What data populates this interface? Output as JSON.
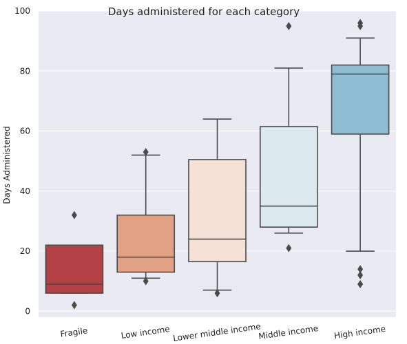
{
  "chart_data": {
    "type": "box",
    "title": "Days administered for each category",
    "xlabel": "",
    "ylabel": "Days Administered",
    "ylim": [
      -2,
      100
    ],
    "yticks": [
      0,
      20,
      40,
      60,
      80,
      100
    ],
    "grid": true,
    "categories": [
      "Fragile",
      "Low income",
      "Lower middle income",
      "Middle income",
      "High income"
    ],
    "colors": {
      "plot_bg": "#eaeaf2",
      "grid": "#ffffff",
      "stroke": "#4a4a4a",
      "boxes": [
        "#b24045",
        "#e3a184",
        "#f6e1d6",
        "#dce9ee",
        "#8ebdd3"
      ]
    },
    "boxes": [
      {
        "category": "Fragile",
        "q1": 6,
        "median": 9,
        "q3": 22,
        "whisker_low": 6,
        "whisker_high": 22,
        "outliers": [
          32,
          2
        ]
      },
      {
        "category": "Low income",
        "q1": 13,
        "median": 18,
        "q3": 32,
        "whisker_low": 11,
        "whisker_high": 52,
        "outliers": [
          53,
          10
        ]
      },
      {
        "category": "Lower middle income",
        "q1": 16.5,
        "median": 24,
        "q3": 50.5,
        "whisker_low": 7,
        "whisker_high": 64,
        "outliers": [
          6
        ]
      },
      {
        "category": "Middle income",
        "q1": 28,
        "median": 35,
        "q3": 61.5,
        "whisker_low": 26,
        "whisker_high": 81,
        "outliers": [
          95,
          21
        ]
      },
      {
        "category": "High income",
        "q1": 59,
        "median": 79,
        "q3": 82,
        "whisker_low": 20,
        "whisker_high": 91,
        "outliers": [
          96,
          95,
          14,
          12,
          9
        ]
      }
    ]
  }
}
